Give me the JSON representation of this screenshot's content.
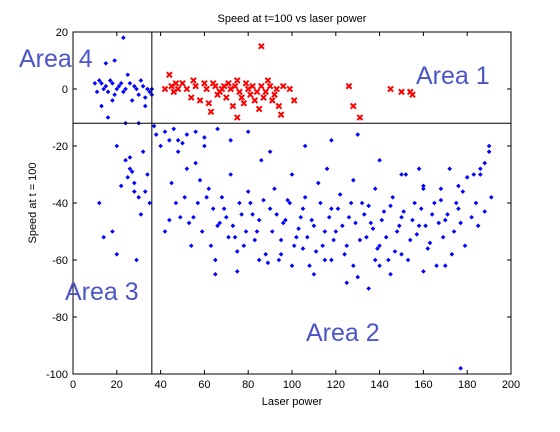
{
  "chart_data": {
    "type": "scatter",
    "title": "Speed at t=100 vs laser power",
    "xlabel": "Laser power",
    "ylabel": "Speed at t = 100",
    "xlim": [
      0,
      200
    ],
    "ylim": [
      -100,
      20
    ],
    "xticks": [
      "0",
      "20",
      "40",
      "60",
      "80",
      "100",
      "120",
      "140",
      "160",
      "180",
      "200"
    ],
    "yticks": [
      "20",
      "0",
      "-20",
      "-40",
      "-60",
      "-80",
      "-100"
    ],
    "grid": false,
    "colors": {
      "blue": "#0000ff",
      "red": "#ff0000",
      "label": "#4b55c8"
    },
    "reference_lines": {
      "vertical_x": 36,
      "horizontal_y": -12
    },
    "area_labels": [
      "Area 4",
      "Area 1",
      "Area 3",
      "Area 2"
    ],
    "red_points": [
      [
        42,
        0
      ],
      [
        44,
        5
      ],
      [
        45,
        1
      ],
      [
        46,
        -1
      ],
      [
        48,
        0
      ],
      [
        50,
        2
      ],
      [
        52,
        0
      ],
      [
        54,
        -3
      ],
      [
        55,
        3
      ],
      [
        56,
        1
      ],
      [
        58,
        -4
      ],
      [
        60,
        2
      ],
      [
        61,
        0
      ],
      [
        62,
        -5
      ],
      [
        63,
        -8
      ],
      [
        64,
        2
      ],
      [
        65,
        1
      ],
      [
        66,
        -2
      ],
      [
        68,
        0
      ],
      [
        69,
        1
      ],
      [
        70,
        -3
      ],
      [
        71,
        2
      ],
      [
        72,
        0
      ],
      [
        73,
        -6
      ],
      [
        74,
        1
      ],
      [
        75,
        3
      ],
      [
        76,
        -1
      ],
      [
        77,
        -3
      ],
      [
        78,
        -5
      ],
      [
        79,
        2
      ],
      [
        80,
        0
      ],
      [
        81,
        -2
      ],
      [
        82,
        1
      ],
      [
        83,
        -4
      ],
      [
        84,
        -1
      ],
      [
        85,
        -7
      ],
      [
        86,
        15
      ],
      [
        87,
        -3
      ],
      [
        88,
        -1
      ],
      [
        89,
        3
      ],
      [
        90,
        1
      ],
      [
        91,
        -4
      ],
      [
        92,
        -2
      ],
      [
        93,
        0
      ],
      [
        94,
        -6
      ],
      [
        95,
        -9
      ],
      [
        96,
        1
      ],
      [
        99,
        0
      ],
      [
        101,
        -4
      ],
      [
        126,
        1
      ],
      [
        128,
        -6
      ],
      [
        131,
        -10
      ],
      [
        145,
        0
      ],
      [
        150,
        -1
      ],
      [
        154,
        -1
      ],
      [
        155,
        -2
      ],
      [
        75,
        -10
      ],
      [
        47,
        2
      ],
      [
        67,
        -1
      ],
      [
        86,
        1
      ]
    ],
    "blue_points": [
      [
        12,
        3
      ],
      [
        13,
        2
      ],
      [
        14,
        0
      ],
      [
        15,
        1
      ],
      [
        16,
        -1
      ],
      [
        17,
        3
      ],
      [
        18,
        2
      ],
      [
        19,
        -2
      ],
      [
        20,
        0
      ],
      [
        21,
        1
      ],
      [
        22,
        2
      ],
      [
        23,
        -1
      ],
      [
        24,
        0
      ],
      [
        25,
        5
      ],
      [
        26,
        2
      ],
      [
        27,
        -4
      ],
      [
        28,
        1
      ],
      [
        29,
        0
      ],
      [
        30,
        -2
      ],
      [
        31,
        3
      ],
      [
        32,
        1
      ],
      [
        33,
        -3
      ],
      [
        34,
        0
      ],
      [
        35,
        -1
      ],
      [
        36,
        0
      ],
      [
        10,
        2
      ],
      [
        11,
        -1
      ],
      [
        15,
        9
      ],
      [
        19,
        10
      ],
      [
        23,
        18
      ],
      [
        13,
        -6
      ],
      [
        16,
        -10
      ],
      [
        24,
        -12
      ],
      [
        33,
        -6
      ],
      [
        30,
        -12
      ],
      [
        37,
        -13
      ],
      [
        18,
        -4
      ],
      [
        36,
        -2
      ],
      [
        38,
        -16
      ],
      [
        40,
        -20
      ],
      [
        42,
        -15
      ],
      [
        44,
        -18
      ],
      [
        46,
        -14
      ],
      [
        48,
        -22
      ],
      [
        50,
        -19
      ],
      [
        52,
        -28
      ],
      [
        56,
        -26
      ],
      [
        58,
        -32
      ],
      [
        60,
        -17
      ],
      [
        62,
        -35
      ],
      [
        64,
        -42
      ],
      [
        66,
        -48
      ],
      [
        68,
        -38
      ],
      [
        70,
        -45
      ],
      [
        72,
        -30
      ],
      [
        74,
        -52
      ],
      [
        76,
        -40
      ],
      [
        78,
        -55
      ],
      [
        80,
        -36
      ],
      [
        82,
        -44
      ],
      [
        84,
        -50
      ],
      [
        86,
        -25
      ],
      [
        88,
        -58
      ],
      [
        90,
        -42
      ],
      [
        92,
        -35
      ],
      [
        94,
        -60
      ],
      [
        96,
        -47
      ],
      [
        98,
        -39
      ],
      [
        100,
        -30
      ],
      [
        102,
        -52
      ],
      [
        104,
        -45
      ],
      [
        106,
        -38
      ],
      [
        108,
        -62
      ],
      [
        110,
        -48
      ],
      [
        112,
        -33
      ],
      [
        114,
        -55
      ],
      [
        116,
        -28
      ],
      [
        118,
        -42
      ],
      [
        120,
        -50
      ],
      [
        122,
        -37
      ],
      [
        124,
        -58
      ],
      [
        126,
        -45
      ],
      [
        128,
        -32
      ],
      [
        130,
        -66
      ],
      [
        132,
        -40
      ],
      [
        134,
        -52
      ],
      [
        136,
        -47
      ],
      [
        138,
        -35
      ],
      [
        140,
        -55
      ],
      [
        142,
        -43
      ],
      [
        144,
        -60
      ],
      [
        146,
        -38
      ],
      [
        148,
        -50
      ],
      [
        150,
        -45
      ],
      [
        152,
        -30
      ],
      [
        154,
        -53
      ],
      [
        156,
        -40
      ],
      [
        158,
        -48
      ],
      [
        160,
        -35
      ],
      [
        162,
        -56
      ],
      [
        164,
        -44
      ],
      [
        166,
        -62
      ],
      [
        168,
        -39
      ],
      [
        170,
        -46
      ],
      [
        172,
        -28
      ],
      [
        174,
        -50
      ],
      [
        176,
        -42
      ],
      [
        178,
        -36
      ],
      [
        180,
        -31
      ],
      [
        182,
        -45
      ],
      [
        184,
        -40
      ],
      [
        186,
        -28
      ],
      [
        188,
        -43
      ],
      [
        190,
        -22
      ],
      [
        191,
        -38
      ],
      [
        185,
        -48
      ],
      [
        183,
        -30
      ],
      [
        179,
        -55
      ],
      [
        12,
        -40
      ],
      [
        14,
        -52
      ],
      [
        18,
        -50
      ],
      [
        20,
        -58
      ],
      [
        22,
        -34
      ],
      [
        24,
        -25
      ],
      [
        26,
        -28
      ],
      [
        28,
        -33
      ],
      [
        30,
        -38
      ],
      [
        32,
        -22
      ],
      [
        34,
        -30
      ],
      [
        31,
        -44
      ],
      [
        27,
        -29
      ],
      [
        25,
        -31
      ],
      [
        33,
        -36
      ],
      [
        29,
        -60
      ],
      [
        35,
        -40
      ],
      [
        20,
        -20
      ],
      [
        26,
        -24
      ],
      [
        28,
        -36
      ],
      [
        55,
        -45
      ],
      [
        57,
        -40
      ],
      [
        59,
        -50
      ],
      [
        61,
        -38
      ],
      [
        63,
        -55
      ],
      [
        65,
        -60
      ],
      [
        67,
        -47
      ],
      [
        69,
        -42
      ],
      [
        71,
        -52
      ],
      [
        73,
        -48
      ],
      [
        75,
        -57
      ],
      [
        77,
        -44
      ],
      [
        79,
        -50
      ],
      [
        81,
        -40
      ],
      [
        83,
        -53
      ],
      [
        85,
        -46
      ],
      [
        87,
        -39
      ],
      [
        89,
        -61
      ],
      [
        91,
        -50
      ],
      [
        93,
        -44
      ],
      [
        95,
        -53
      ],
      [
        97,
        -46
      ],
      [
        99,
        -40
      ],
      [
        101,
        -55
      ],
      [
        103,
        -49
      ],
      [
        105,
        -42
      ],
      [
        107,
        -52
      ],
      [
        109,
        -46
      ],
      [
        111,
        -57
      ],
      [
        113,
        -40
      ],
      [
        115,
        -50
      ],
      [
        117,
        -45
      ],
      [
        119,
        -53
      ],
      [
        121,
        -42
      ],
      [
        123,
        -48
      ],
      [
        125,
        -55
      ],
      [
        127,
        -40
      ],
      [
        129,
        -47
      ],
      [
        131,
        -53
      ],
      [
        133,
        -44
      ],
      [
        135,
        -41
      ],
      [
        137,
        -49
      ],
      [
        139,
        -56
      ],
      [
        141,
        -46
      ],
      [
        143,
        -52
      ],
      [
        145,
        -41
      ],
      [
        147,
        -57
      ],
      [
        149,
        -48
      ],
      [
        151,
        -43
      ],
      [
        153,
        -60
      ],
      [
        155,
        -46
      ],
      [
        157,
        -51
      ],
      [
        159,
        -42
      ],
      [
        161,
        -48
      ],
      [
        163,
        -54
      ],
      [
        165,
        -40
      ],
      [
        167,
        -47
      ],
      [
        169,
        -52
      ],
      [
        171,
        -44
      ],
      [
        173,
        -58
      ],
      [
        175,
        -40
      ],
      [
        177,
        -47
      ],
      [
        45,
        -33
      ],
      [
        47,
        -40
      ],
      [
        49,
        -45
      ],
      [
        51,
        -38
      ],
      [
        53,
        -47
      ],
      [
        54,
        -55
      ],
      [
        42,
        -50
      ],
      [
        44,
        -46
      ],
      [
        100,
        -62
      ],
      [
        110,
        -65
      ],
      [
        115,
        -60
      ],
      [
        125,
        -68
      ],
      [
        135,
        -70
      ],
      [
        145,
        -65
      ],
      [
        150,
        -58
      ],
      [
        160,
        -64
      ],
      [
        170,
        -62
      ],
      [
        140,
        -62
      ],
      [
        177,
        -98
      ],
      [
        65,
        -65
      ],
      [
        75,
        -64
      ],
      [
        85,
        -60
      ],
      [
        95,
        -58
      ],
      [
        105,
        -56
      ],
      [
        118,
        -60
      ],
      [
        128,
        -62
      ],
      [
        138,
        -60
      ],
      [
        48,
        -18
      ],
      [
        52,
        -16
      ],
      [
        56,
        -15
      ],
      [
        60,
        -20
      ],
      [
        66,
        -14
      ],
      [
        72,
        -18
      ],
      [
        80,
        -15
      ],
      [
        90,
        -22
      ],
      [
        106,
        -20
      ],
      [
        118,
        -18
      ],
      [
        130,
        -16
      ],
      [
        140,
        -25
      ],
      [
        150,
        -30
      ],
      [
        160,
        -34
      ],
      [
        186,
        -30
      ],
      [
        188,
        -26
      ],
      [
        190,
        -20
      ],
      [
        176,
        -34
      ],
      [
        168,
        -35
      ],
      [
        158,
        -28
      ]
    ]
  }
}
